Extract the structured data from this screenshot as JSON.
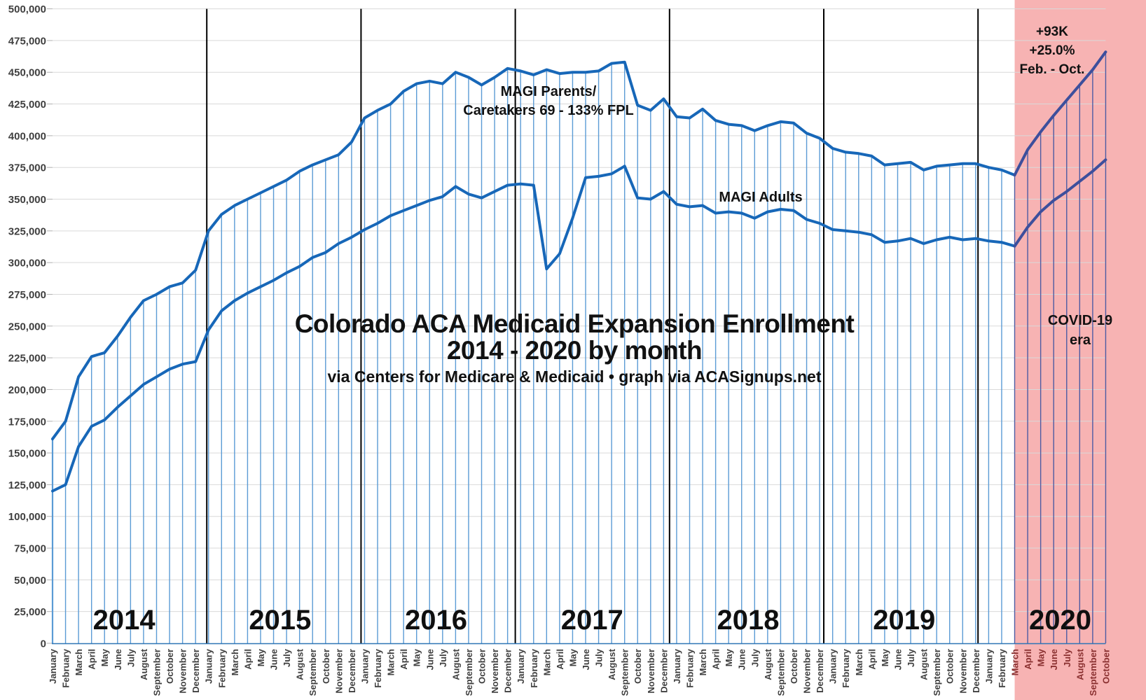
{
  "chart_data": {
    "type": "line",
    "title": "Colorado ACA Medicaid Expansion Enrollment",
    "title_line2": "2014 - 2020 by month",
    "subtitle": "via Centers for Medicare & Medicaid • graph via ACASignups.net",
    "xlabel": "",
    "ylabel": "",
    "ylim": [
      0,
      500000
    ],
    "y_tick_step": 25000,
    "y_tick_labels": [
      "0",
      "25,000",
      "50,000",
      "75,000",
      "100,000",
      "125,000",
      "150,000",
      "175,000",
      "200,000",
      "225,000",
      "250,000",
      "275,000",
      "300,000",
      "325,000",
      "350,000",
      "375,000",
      "400,000",
      "425,000",
      "450,000",
      "475,000",
      "500,000"
    ],
    "grid": "horizontal gridlines + vertical monthly drop lines to upper series",
    "legend_position": "inline text labels on plot",
    "x_tick_labels": [
      "January",
      "February",
      "March",
      "April",
      "May",
      "June",
      "July",
      "August",
      "September",
      "October",
      "November",
      "December",
      "January",
      "February",
      "March",
      "April",
      "May",
      "June",
      "July",
      "August",
      "September",
      "October",
      "November",
      "December",
      "January",
      "February",
      "March",
      "April",
      "May",
      "June",
      "July",
      "August",
      "September",
      "October",
      "November",
      "December",
      "January",
      "February",
      "March",
      "April",
      "May",
      "June",
      "July",
      "August",
      "September",
      "October",
      "November",
      "December",
      "January",
      "February",
      "March",
      "April",
      "May",
      "June",
      "July",
      "August",
      "September",
      "October",
      "November",
      "December",
      "January",
      "February",
      "March",
      "April",
      "May",
      "June",
      "July",
      "August",
      "September",
      "October",
      "November",
      "December",
      "January",
      "February",
      "March",
      "April",
      "May",
      "June",
      "July",
      "August",
      "September",
      "October"
    ],
    "years": [
      {
        "label": "2014",
        "start_index": 0
      },
      {
        "label": "2015",
        "start_index": 12
      },
      {
        "label": "2016",
        "start_index": 24
      },
      {
        "label": "2017",
        "start_index": 36
      },
      {
        "label": "2018",
        "start_index": 48
      },
      {
        "label": "2019",
        "start_index": 60
      },
      {
        "label": "2020",
        "start_index": 72
      }
    ],
    "series": [
      {
        "name": "MAGI Parents/Caretakers 69 - 133% FPL",
        "label_line1": "MAGI Parents/",
        "label_line2": "Caretakers 69 - 133% FPL",
        "values": [
          161000,
          175000,
          210000,
          226000,
          229000,
          242000,
          257000,
          270000,
          275000,
          281000,
          284000,
          294000,
          325000,
          338000,
          345000,
          350000,
          355000,
          360000,
          365000,
          372000,
          377000,
          381000,
          385000,
          395000,
          414000,
          420000,
          425000,
          435000,
          441000,
          443000,
          441000,
          450000,
          446000,
          440000,
          446000,
          453000,
          451000,
          448000,
          452000,
          449000,
          450000,
          450000,
          451000,
          457000,
          458000,
          424000,
          420000,
          429000,
          415000,
          414000,
          421000,
          412000,
          409000,
          408000,
          404000,
          408000,
          411000,
          410000,
          402000,
          398000,
          390000,
          387000,
          386000,
          384000,
          377000,
          378000,
          379000,
          373000,
          376000,
          377000,
          378000,
          378000,
          375000,
          373000,
          369000,
          389000,
          403000,
          416000,
          428000,
          440000,
          452000,
          466000
        ]
      },
      {
        "name": "MAGI Adults",
        "label": "MAGI Adults",
        "values": [
          120000,
          125000,
          155000,
          171000,
          176000,
          186000,
          195000,
          204000,
          210000,
          216000,
          220000,
          222000,
          247000,
          262000,
          270000,
          276000,
          281000,
          286000,
          292000,
          297000,
          304000,
          308000,
          315000,
          320000,
          326000,
          331000,
          337000,
          341000,
          345000,
          349000,
          352000,
          360000,
          354000,
          351000,
          356000,
          361000,
          362000,
          361000,
          295000,
          307000,
          335000,
          367000,
          368000,
          370000,
          376000,
          351000,
          350000,
          356000,
          346000,
          344000,
          345000,
          339000,
          340000,
          339000,
          335000,
          340000,
          342000,
          341000,
          334000,
          331000,
          326000,
          325000,
          324000,
          322000,
          316000,
          317000,
          319000,
          315000,
          318000,
          320000,
          318000,
          319000,
          317000,
          316000,
          313000,
          328000,
          340000,
          349000,
          356000,
          364000,
          372000,
          381000
        ]
      }
    ],
    "covid": {
      "start_index": 74,
      "label_line1": "COVID-19",
      "label_line2": "era",
      "annotation_lines": [
        "+93K",
        "+25.0%",
        "Feb. - Oct."
      ]
    },
    "colors": {
      "series_blue": "#1767b8",
      "series_covid": "#3d4f9c",
      "dropline": "#5b9bd5",
      "dropline_covid": "#4d5ba3",
      "gridline": "#d9d9d9",
      "tick": "#b0b0b0",
      "axis": "#2e75b6",
      "divider": "#000000",
      "covid_fill": "#f7b3b3",
      "axis_label": "#3f3f3f",
      "axis_label_covid": "#8a3030",
      "year_label": "#0f0f0f",
      "text": "#111111"
    }
  }
}
